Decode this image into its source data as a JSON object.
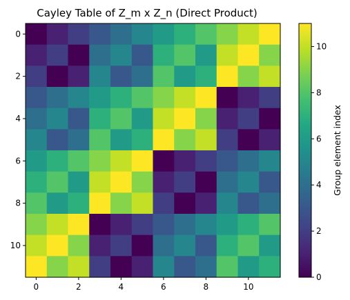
{
  "chart_data": {
    "type": "heatmap",
    "title": "Cayley Table of Z_m x Z_n (Direct Product)",
    "xlabel": "",
    "ylabel": "",
    "x_ticks": [
      "0",
      "2",
      "4",
      "6",
      "8",
      "10"
    ],
    "y_ticks": [
      "0",
      "2",
      "4",
      "6",
      "8",
      "10"
    ],
    "colorbar": {
      "label": "Group element index",
      "ticks": [
        "0",
        "2",
        "4",
        "6",
        "8",
        "10"
      ],
      "range": [
        0,
        11
      ],
      "colormap": "viridis"
    },
    "matrix": [
      [
        0,
        1,
        2,
        3,
        4,
        5,
        6,
        7,
        8,
        9,
        10,
        11
      ],
      [
        1,
        2,
        0,
        4,
        5,
        3,
        7,
        8,
        6,
        10,
        11,
        9
      ],
      [
        2,
        0,
        1,
        5,
        3,
        4,
        8,
        6,
        7,
        11,
        9,
        10
      ],
      [
        3,
        4,
        5,
        6,
        7,
        8,
        9,
        10,
        11,
        0,
        1,
        2
      ],
      [
        4,
        5,
        3,
        7,
        8,
        6,
        10,
        11,
        9,
        1,
        2,
        0
      ],
      [
        5,
        3,
        4,
        8,
        6,
        7,
        11,
        9,
        10,
        2,
        0,
        1
      ],
      [
        6,
        7,
        8,
        9,
        10,
        11,
        0,
        1,
        2,
        3,
        4,
        5
      ],
      [
        7,
        8,
        6,
        10,
        11,
        9,
        1,
        2,
        0,
        4,
        5,
        3
      ],
      [
        8,
        6,
        7,
        11,
        9,
        10,
        2,
        0,
        1,
        5,
        3,
        4
      ],
      [
        9,
        10,
        11,
        0,
        1,
        2,
        3,
        4,
        5,
        6,
        7,
        8
      ],
      [
        10,
        11,
        9,
        1,
        2,
        0,
        4,
        5,
        3,
        7,
        8,
        6
      ],
      [
        11,
        9,
        10,
        2,
        0,
        1,
        5,
        3,
        4,
        8,
        6,
        7
      ]
    ]
  }
}
